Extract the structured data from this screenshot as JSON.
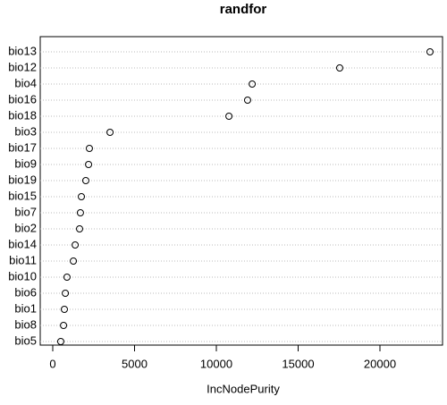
{
  "chart_data": {
    "type": "dot",
    "title": "randfor",
    "x_label": "IncNodePurity",
    "categories": [
      "bio13",
      "bio12",
      "bio4",
      "bio16",
      "bio18",
      "bio3",
      "bio17",
      "bio9",
      "bio19",
      "bio15",
      "bio7",
      "bio2",
      "bio14",
      "bio11",
      "bio10",
      "bio6",
      "bio1",
      "bio8",
      "bio5"
    ],
    "values": [
      23060,
      17540,
      12190,
      11910,
      10770,
      3500,
      2240,
      2190,
      2020,
      1750,
      1690,
      1640,
      1370,
      1260,
      870,
      770,
      710,
      660,
      490
    ],
    "color": "#000000",
    "xlim": [
      -765,
      23825
    ],
    "xticks": [
      0,
      5000,
      10000,
      15000,
      20000
    ],
    "grid": true
  }
}
